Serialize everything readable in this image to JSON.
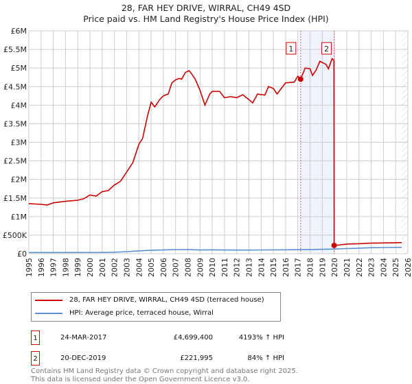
{
  "chart_data": {
    "type": "line",
    "title": "28, FAR HEY DRIVE, WIRRAL, CH49 4SD",
    "subtitle": "Price paid vs. HM Land Registry's House Price Index (HPI)",
    "xlim": [
      1995,
      2026
    ],
    "ylim": [
      0,
      6000000
    ],
    "x_ticks": [
      "1995",
      "1996",
      "1997",
      "1998",
      "1999",
      "2000",
      "2001",
      "2002",
      "2003",
      "2004",
      "2005",
      "2006",
      "2007",
      "2008",
      "2009",
      "2010",
      "2011",
      "2012",
      "2013",
      "2014",
      "2015",
      "2016",
      "2017",
      "2018",
      "2019",
      "2020",
      "2021",
      "2022",
      "2023",
      "2024",
      "2025",
      "2026"
    ],
    "y_ticks": [
      {
        "v": 0,
        "label": "£0"
      },
      {
        "v": 500000,
        "label": "£500K"
      },
      {
        "v": 1000000,
        "label": "£1M"
      },
      {
        "v": 1500000,
        "label": "£1.5M"
      },
      {
        "v": 2000000,
        "label": "£2M"
      },
      {
        "v": 2500000,
        "label": "£2.5M"
      },
      {
        "v": 3000000,
        "label": "£3M"
      },
      {
        "v": 3500000,
        "label": "£3.5M"
      },
      {
        "v": 4000000,
        "label": "£4M"
      },
      {
        "v": 4500000,
        "label": "£4.5M"
      },
      {
        "v": 5000000,
        "label": "£5M"
      },
      {
        "v": 5500000,
        "label": "£5.5M"
      },
      {
        "v": 6000000,
        "label": "£6M"
      }
    ],
    "grid": true,
    "series": [
      {
        "name": "28, FAR HEY DRIVE, WIRRAL, CH49 4SD (terraced house)",
        "color": "#cc0000",
        "points": [
          [
            1995,
            1350000
          ],
          [
            1996,
            1330000
          ],
          [
            1996.5,
            1310000
          ],
          [
            1997,
            1370000
          ],
          [
            1998,
            1410000
          ],
          [
            1999,
            1440000
          ],
          [
            1999.5,
            1480000
          ],
          [
            2000,
            1580000
          ],
          [
            2000.5,
            1550000
          ],
          [
            2001,
            1670000
          ],
          [
            2001.5,
            1700000
          ],
          [
            2002,
            1850000
          ],
          [
            2002.5,
            1950000
          ],
          [
            2003,
            2200000
          ],
          [
            2003.5,
            2450000
          ],
          [
            2004,
            2950000
          ],
          [
            2004.3,
            3100000
          ],
          [
            2004.7,
            3700000
          ],
          [
            2005,
            4080000
          ],
          [
            2005.3,
            3950000
          ],
          [
            2005.7,
            4150000
          ],
          [
            2006,
            4250000
          ],
          [
            2006.4,
            4300000
          ],
          [
            2006.7,
            4600000
          ],
          [
            2007,
            4680000
          ],
          [
            2007.3,
            4720000
          ],
          [
            2007.5,
            4700000
          ],
          [
            2007.8,
            4880000
          ],
          [
            2008.1,
            4930000
          ],
          [
            2008.3,
            4850000
          ],
          [
            2008.6,
            4700000
          ],
          [
            2009,
            4400000
          ],
          [
            2009.4,
            4000000
          ],
          [
            2009.8,
            4300000
          ],
          [
            2010,
            4370000
          ],
          [
            2010.6,
            4370000
          ],
          [
            2011,
            4200000
          ],
          [
            2011.5,
            4230000
          ],
          [
            2012,
            4200000
          ],
          [
            2012.5,
            4280000
          ],
          [
            2013,
            4150000
          ],
          [
            2013.3,
            4060000
          ],
          [
            2013.7,
            4300000
          ],
          [
            2014.3,
            4270000
          ],
          [
            2014.6,
            4500000
          ],
          [
            2015,
            4450000
          ],
          [
            2015.3,
            4300000
          ],
          [
            2016,
            4600000
          ],
          [
            2016.7,
            4620000
          ],
          [
            2017,
            4780000
          ],
          [
            2017.23,
            4699400
          ],
          [
            2017.6,
            5000000
          ],
          [
            2018,
            4980000
          ],
          [
            2018.2,
            4800000
          ],
          [
            2018.5,
            4950000
          ],
          [
            2018.8,
            5180000
          ],
          [
            2019.3,
            5100000
          ],
          [
            2019.5,
            4980000
          ],
          [
            2019.8,
            5250000
          ],
          [
            2019.95,
            5200000
          ],
          [
            2019.97,
            221995
          ],
          [
            2020.5,
            240000
          ],
          [
            2021,
            260000
          ],
          [
            2022,
            270000
          ],
          [
            2023,
            285000
          ],
          [
            2024,
            290000
          ],
          [
            2025.5,
            300000
          ]
        ]
      },
      {
        "name": "HPI: Average price, terraced house, Wirral",
        "color": "#5b8fd4",
        "points": [
          [
            1995,
            31000
          ],
          [
            1998,
            32000
          ],
          [
            2001,
            34000
          ],
          [
            2002,
            40000
          ],
          [
            2003,
            55000
          ],
          [
            2004,
            75000
          ],
          [
            2005,
            95000
          ],
          [
            2007,
            110000
          ],
          [
            2008,
            112000
          ],
          [
            2009,
            100000
          ],
          [
            2010,
            105000
          ],
          [
            2011,
            100000
          ],
          [
            2013,
            98000
          ],
          [
            2014,
            102000
          ],
          [
            2016,
            105000
          ],
          [
            2017,
            109000
          ],
          [
            2018,
            113000
          ],
          [
            2019,
            118000
          ],
          [
            2020,
            125000
          ],
          [
            2021,
            138000
          ],
          [
            2022,
            150000
          ],
          [
            2023,
            162000
          ],
          [
            2024,
            166000
          ],
          [
            2025.5,
            172000
          ]
        ]
      }
    ],
    "annotations": [
      {
        "label": "1",
        "x": 2017.23,
        "y": 4699400
      },
      {
        "label": "2",
        "x": 2019.97,
        "y": 221995
      }
    ],
    "shaded_range": [
      2017.23,
      2019.97
    ],
    "hatched_from": 2025.5
  },
  "legend": {
    "items": [
      "28, FAR HEY DRIVE, WIRRAL, CH49 4SD (terraced house)",
      "HPI: Average price, terraced house, Wirral"
    ]
  },
  "transactions": [
    {
      "num": "1",
      "date": "24-MAR-2017",
      "price": "£4,699,400",
      "hpi": "4193% ↑ HPI"
    },
    {
      "num": "2",
      "date": "20-DEC-2019",
      "price": "£221,995",
      "hpi": "84% ↑ HPI"
    }
  ],
  "footer": {
    "line1": "Contains HM Land Registry data © Crown copyright and database right 2025.",
    "line2": "This data is licensed under the Open Government Licence v3.0."
  }
}
